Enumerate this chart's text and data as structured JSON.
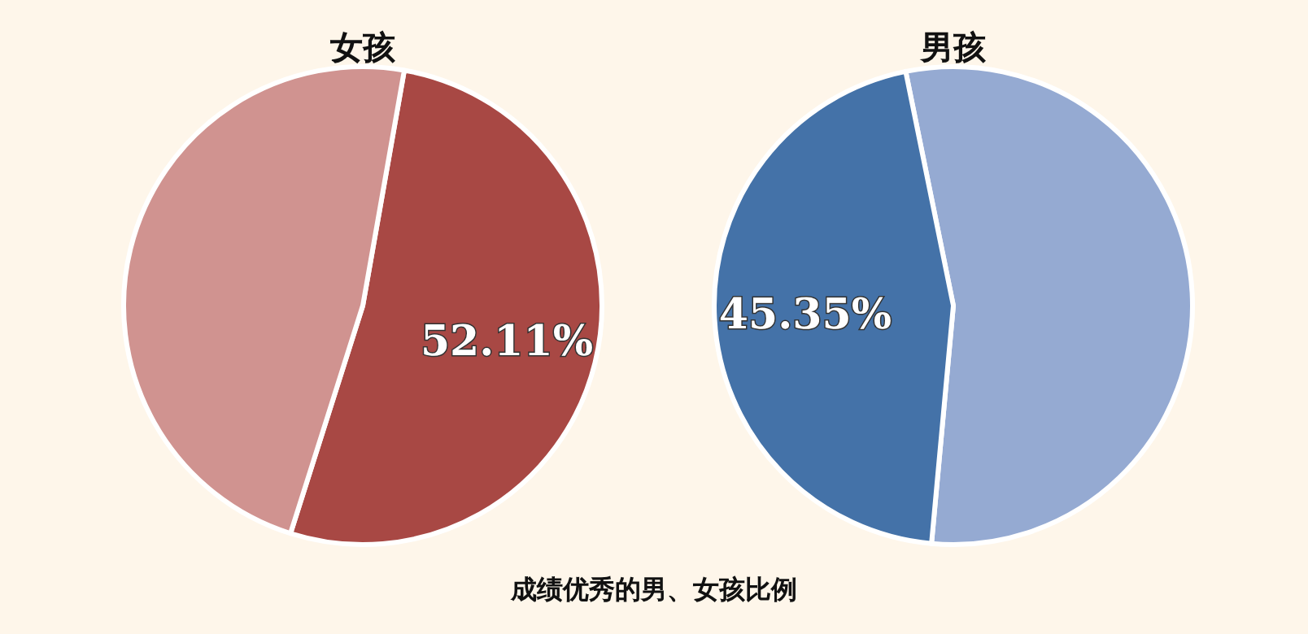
{
  "chart_data": [
    {
      "type": "pie",
      "title": "女孩",
      "categories": [
        null,
        null
      ],
      "values": [
        52.11,
        47.89
      ],
      "colors": [
        "#a84844",
        "#d09390"
      ],
      "value_labels": [
        "52.11%",
        null
      ],
      "annotations": [
        "成绩优秀的男、女孩比例"
      ]
    },
    {
      "type": "pie",
      "title": "男孩",
      "categories": [
        null,
        null
      ],
      "values": [
        54.65,
        45.35
      ],
      "colors": [
        "#95aad2",
        "#4472a8"
      ],
      "value_labels": [
        null,
        "45.35%"
      ]
    }
  ]
}
